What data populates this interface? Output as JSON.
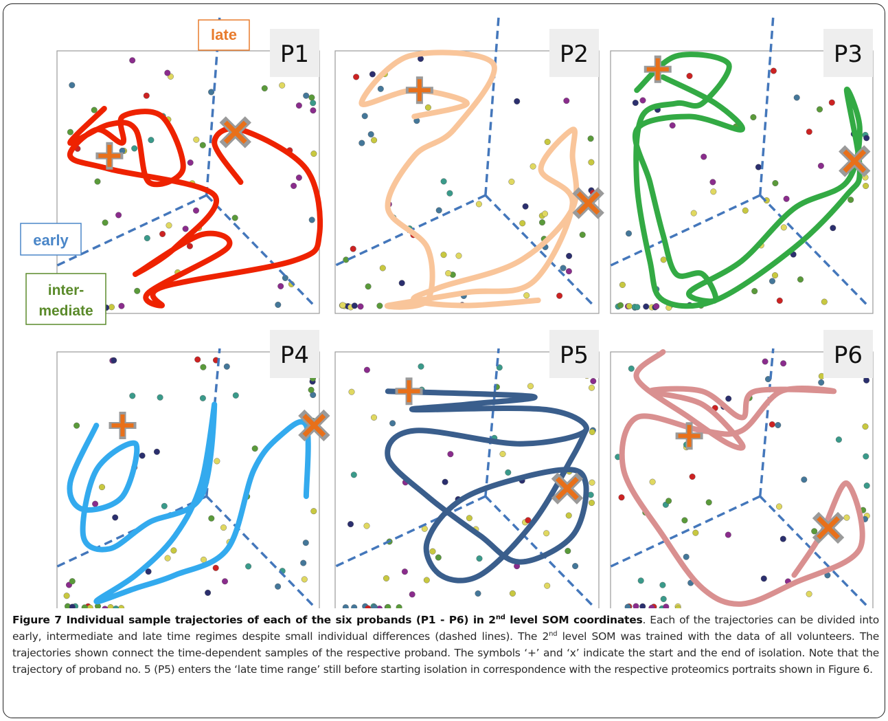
{
  "figure": {
    "panels": [
      {
        "id": "p1",
        "label": "P1",
        "color": "#ee2200"
      },
      {
        "id": "p2",
        "label": "P2",
        "color": "#f9c59a"
      },
      {
        "id": "p3",
        "label": "P3",
        "color": "#33aa44"
      },
      {
        "id": "p4",
        "label": "P4",
        "color": "#33aaee"
      },
      {
        "id": "p5",
        "label": "P5",
        "color": "#3a5e8c"
      },
      {
        "id": "p6",
        "label": "P6",
        "color": "#d99090"
      }
    ],
    "regime_labels": {
      "late": "late",
      "early": "early",
      "intermediate_line1": "inter-",
      "intermediate_line2": "mediate"
    },
    "regime_colors": {
      "late": "#e87b2c",
      "early": "#4a86c8",
      "intermediate": "#5a8a2a",
      "boundary": "#4477bb"
    },
    "marker_color": "#e8701a",
    "marker_outline": "#9a9a9a",
    "markers": {
      "start": "+",
      "end": "x"
    }
  },
  "caption": {
    "label": "Figure 7",
    "title_main": "Individual sample trajectories of each of the six probands (P1 - P6) in 2",
    "title_sup": "nd",
    "title_end": "level SOM coordinates",
    "text_part1": ". Each of the trajectories can be divided into early, intermediate and late time regimes despite small individual differences (dashed lines). The 2",
    "text_sup": "nd",
    "text_part2": "level SOM was trained with the data of all volunteers. The trajectories shown connect the time-dependent samples of the respective proband. The symbols ‘+’ and ‘x’ indicate the start and the end of isolation. Note that the trajectory of proband no. 5 (P5) enters the ‘late time range’ still before starting isolation in correspondence with the respective proteomics portraits shown in Figure 6."
  }
}
